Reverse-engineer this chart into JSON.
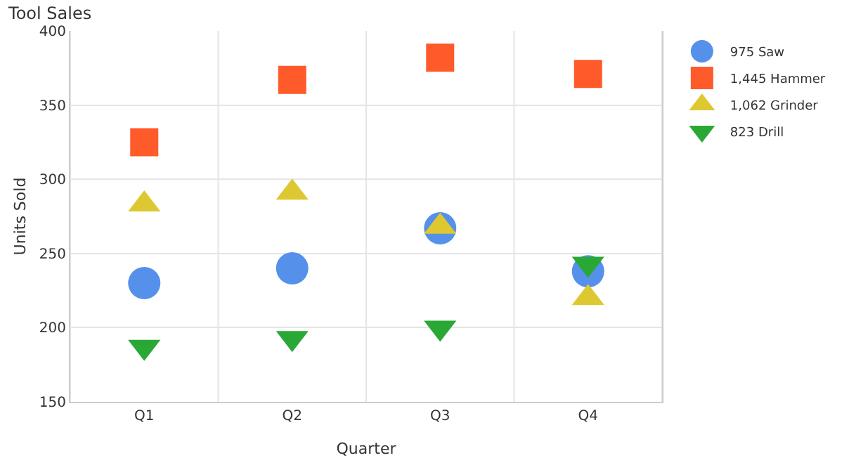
{
  "chart_data": {
    "type": "scatter",
    "title": "Tool Sales",
    "xlabel": "Quarter",
    "ylabel": "Units Sold",
    "categories": [
      "Q1",
      "Q2",
      "Q3",
      "Q4"
    ],
    "series": [
      {
        "name": "975 Saw",
        "color": "#5591ea",
        "marker": "circle",
        "values": [
          230,
          240,
          267,
          238
        ]
      },
      {
        "name": "1,445 Hammer",
        "color": "#ff5a2a",
        "marker": "square",
        "values": [
          325,
          367,
          382,
          371
        ]
      },
      {
        "name": "1,062 Grinder",
        "color": "#ddc831",
        "marker": "triangle",
        "values": [
          283,
          291,
          268,
          220
        ]
      },
      {
        "name": "823 Drill",
        "color": "#2aa836",
        "marker": "triangle-down",
        "values": [
          187,
          193,
          200,
          243
        ]
      }
    ],
    "ylim": [
      150,
      400
    ],
    "yticks": [
      150,
      200,
      250,
      300,
      350,
      400
    ],
    "grid": true,
    "legend": "top right"
  }
}
